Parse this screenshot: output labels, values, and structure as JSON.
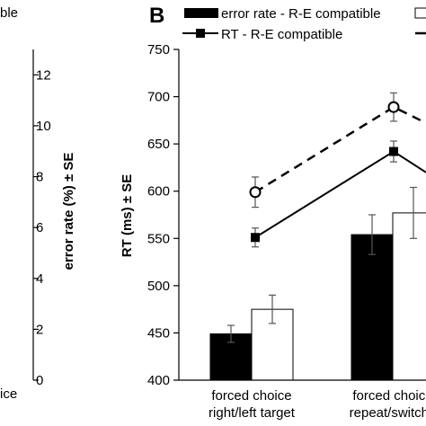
{
  "panel_label": "B",
  "left_panel": {
    "ylabel": "error rate (%)  ± SE",
    "ticks": [
      "0",
      "2",
      "4",
      "6",
      "8",
      "10",
      "12"
    ],
    "category_fragments": [
      "ble",
      "ice"
    ]
  },
  "legend": {
    "error_rate_compatible": "error rate - R-E compatible",
    "rt_compatible": "RT - R-E compatible"
  },
  "chart_data": {
    "type": "bar",
    "title": "",
    "xlabel": "",
    "ylabel": "RT (ms)  ± SE",
    "ylim": [
      400,
      750
    ],
    "yticks": [
      400,
      450,
      500,
      550,
      600,
      650,
      700,
      750
    ],
    "categories": [
      [
        "forced choice",
        "right/left target"
      ],
      [
        "forced choice",
        "repeat/switch t"
      ]
    ],
    "bar_series": [
      {
        "name": "error rate - R-E compatible",
        "fill": "#000000",
        "values": [
          449,
          554
        ],
        "se": [
          9,
          21
        ]
      },
      {
        "name": "",
        "fill": "#ffffff",
        "values": [
          475,
          577
        ],
        "se": [
          15,
          27
        ]
      }
    ],
    "line_series": [
      {
        "name": "RT - R-E compatible",
        "dash": "solid",
        "marker": "filled-square",
        "values": [
          551,
          642
        ],
        "se": [
          10,
          11
        ],
        "next_value": 604
      },
      {
        "name": "",
        "dash": "dashed",
        "marker": "open-circle",
        "values": [
          599,
          689
        ],
        "se": [
          16,
          15
        ],
        "next_value": 660
      }
    ],
    "grid": false,
    "legend_position": "top"
  }
}
